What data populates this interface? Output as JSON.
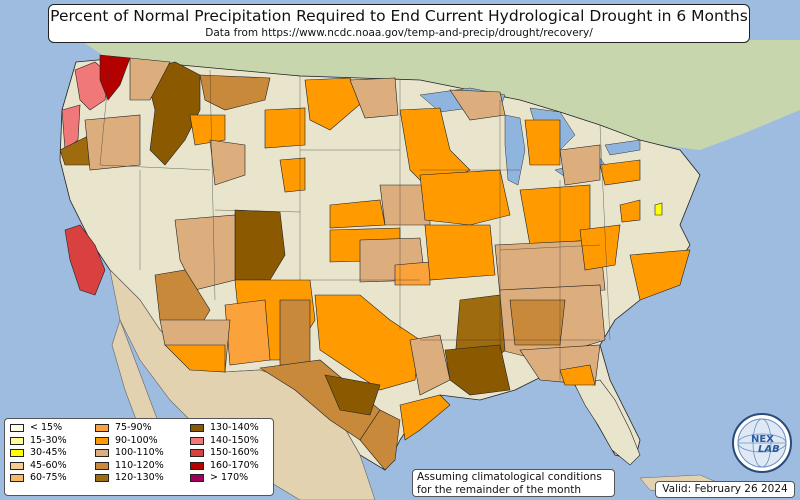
{
  "title": "Percent of Normal Precipitation Required to End Current Hydrological Drought in 6 Months",
  "subtitle": "Data from https://www.ncdc.noaa.gov/temp-and-precip/drought/recovery/",
  "legend": [
    {
      "label": "< 15%",
      "color": "#ffffe8"
    },
    {
      "label": "15-30%",
      "color": "#ffff9a"
    },
    {
      "label": "30-45%",
      "color": "#ffff00"
    },
    {
      "label": "45-60%",
      "color": "#f5cb94"
    },
    {
      "label": "60-75%",
      "color": "#f9b866"
    },
    {
      "label": "75-90%",
      "color": "#fca23a"
    },
    {
      "label": "90-100%",
      "color": "#ff9a00"
    },
    {
      "label": "100-110%",
      "color": "#dcad7d"
    },
    {
      "label": "110-120%",
      "color": "#c8893a"
    },
    {
      "label": "120-130%",
      "color": "#9e6b0e"
    },
    {
      "label": "130-140%",
      "color": "#8b5a00"
    },
    {
      "label": "140-150%",
      "color": "#f07878"
    },
    {
      "label": "150-160%",
      "color": "#d94040"
    },
    {
      "label": "160-170%",
      "color": "#b50000"
    },
    {
      "label": "> 170%",
      "color": "#a0005a"
    }
  ],
  "note": {
    "line1": "Assuming climatological conditions",
    "line2": "for the remainder of the month"
  },
  "valid": "Valid: February 26 2024",
  "logo": {
    "text_top": "NEX",
    "text_bottom": "LAB",
    "icon": "nexlab-globe-logo-icon"
  },
  "colors": {
    "ocean": "#9dbce0",
    "land": "#e9e4cc",
    "land_green": "#b8cf9c",
    "mexico": "#e2d2b0",
    "lake": "#8fb4de"
  }
}
